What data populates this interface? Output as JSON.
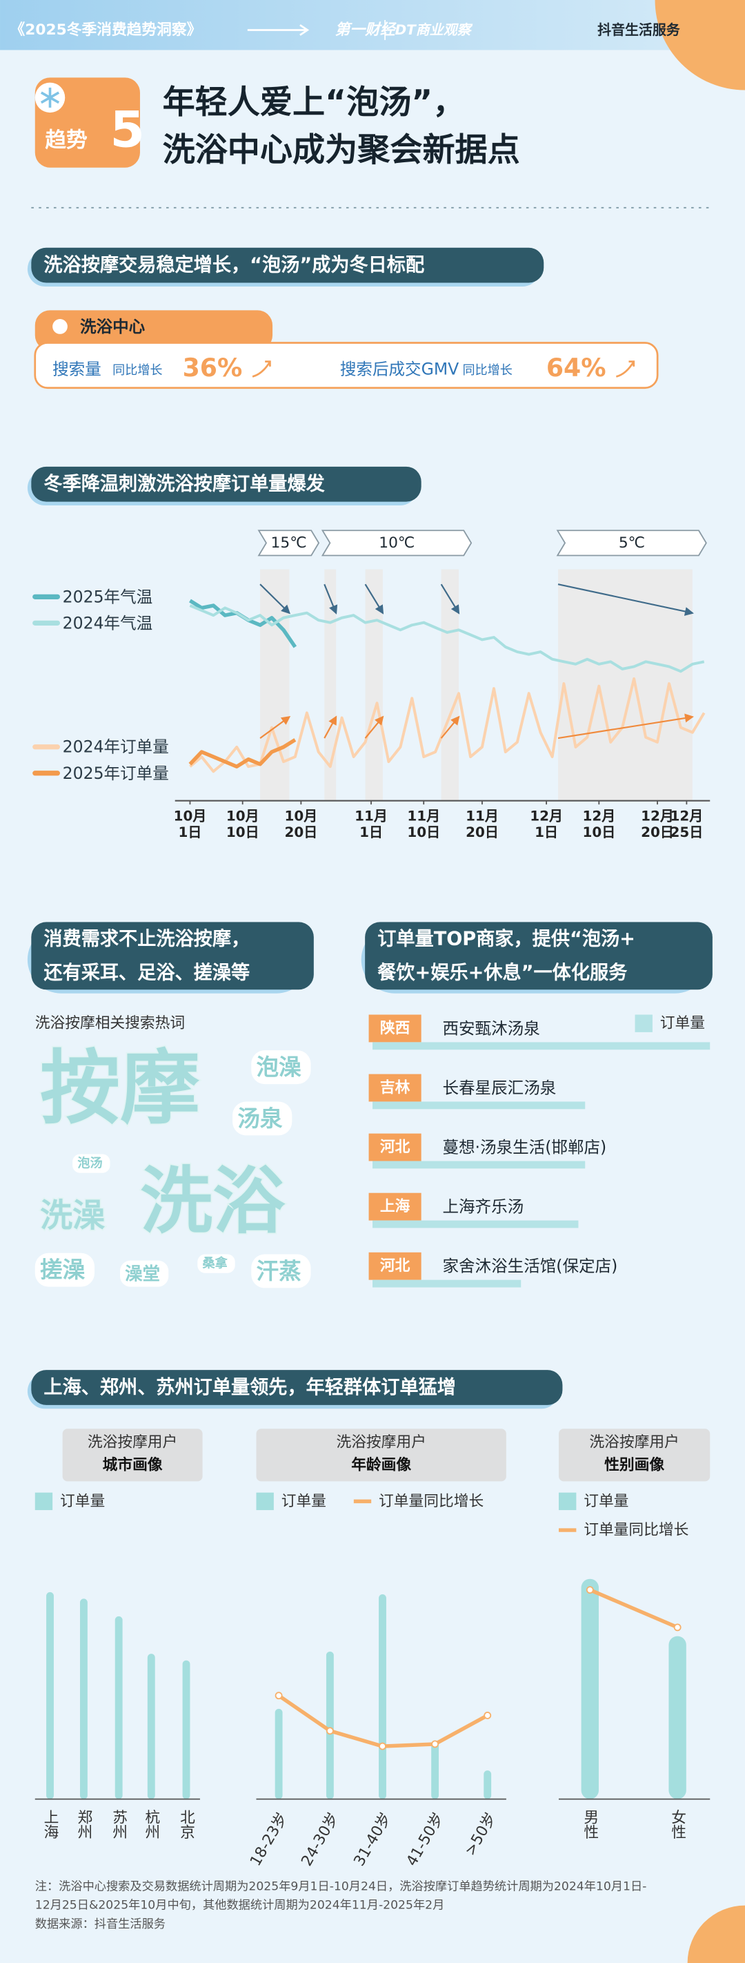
{
  "header": {
    "series_title": "《2025冬季消费趋势洞察》",
    "logos": [
      "第一财经",
      "DT商业观察",
      "抖音生活服务"
    ]
  },
  "trend": {
    "label": "趋势",
    "number": "5",
    "title": [
      "年轻人爱上“泡汤”，",
      "洗浴中心成为聚会新据点"
    ]
  },
  "section1": {
    "heading": "洗浴按摩交易稳定增长，“泡汤”成为冬日标配",
    "card": {
      "tab": "洗浴中心",
      "metrics": [
        {
          "name": "搜索量",
          "note": "同比增长",
          "value": "36%"
        },
        {
          "name": "搜索后成交GMV",
          "note": "同比增长",
          "value": "64%"
        }
      ]
    }
  },
  "section2": {
    "heading": "冬季降温刺激洗浴按摩订单量爆发",
    "temperature_bands": [
      "15℃",
      "10℃",
      "5℃"
    ]
  },
  "section3": {
    "left_heading": [
      "消费需求不止洗浴按摩，",
      "还有采耳、足浴、搓澡等"
    ],
    "cloud_title": "洗浴按摩相关搜索热词",
    "cloud_words": [
      "按摩",
      "洗浴",
      "泡澡",
      "汤泉",
      "泡汤",
      "洗澡",
      "搓澡",
      "澡堂",
      "桑拿",
      "汗蒸"
    ],
    "right_heading": [
      "订单量TOP商家，提供“泡汤+",
      "餐饮+娱乐+休息”一体化服务"
    ]
  },
  "section4": {
    "heading": "上海、郑州、苏州订单量领先，年轻群体订单猛增"
  },
  "footnote": [
    "注：洗浴中心搜索及交易数据统计周期为2025年9月1日-10月24日，洗浴按摩订单趋势统计周期为2024年10月1日-",
    "12月25日&2025年10月中旬，其他数据统计周期为2024年11月-2025年2月",
    "数据来源：抖音生活服务"
  ],
  "chart_data": [
    {
      "type": "line",
      "x": [
        0,
        2,
        4,
        6,
        8,
        10,
        12,
        14,
        16,
        18,
        20,
        22,
        24,
        26,
        28,
        30,
        32,
        34,
        36,
        38,
        40,
        42,
        44,
        46,
        48,
        50,
        52,
        54,
        56,
        58,
        60,
        62,
        64,
        66,
        68,
        70,
        72,
        74,
        76,
        78,
        80,
        82,
        84,
        86,
        88
      ],
      "xlim": [
        0,
        89
      ],
      "ylim": [
        0,
        100
      ],
      "xticks": [
        {
          "value": 0,
          "label": "10月1日"
        },
        {
          "value": 9,
          "label": "10月10日"
        },
        {
          "value": 19,
          "label": "10月20日"
        },
        {
          "value": 31,
          "label": "11月1日"
        },
        {
          "value": 40,
          "label": "11月10日"
        },
        {
          "value": 50,
          "label": "11月20日"
        },
        {
          "value": 61,
          "label": "12月1日"
        },
        {
          "value": 70,
          "label": "12月10日"
        },
        {
          "value": 80,
          "label": "12月20日"
        },
        {
          "value": 85,
          "label": "12月25日"
        }
      ],
      "highlight_ranges": [
        [
          12,
          17
        ],
        [
          23,
          25
        ],
        [
          30,
          33
        ],
        [
          43,
          46
        ],
        [
          63,
          86
        ]
      ],
      "series": [
        {
          "name": "2025年气温",
          "color": "#5bb8c2",
          "values": [
            82,
            79,
            80,
            76,
            77,
            74,
            72,
            75,
            70,
            63,
            null,
            null,
            null,
            null,
            null,
            null,
            null,
            null,
            null,
            null,
            null,
            null,
            null,
            null,
            null,
            null,
            null,
            null,
            null,
            null,
            null,
            null,
            null,
            null,
            null,
            null,
            null,
            null,
            null,
            null,
            null,
            null,
            null,
            null,
            null
          ]
        },
        {
          "name": "2024年气温",
          "color": "#a8dfe0",
          "values": [
            80,
            78,
            76,
            79,
            77,
            74,
            76,
            72,
            75,
            76,
            77,
            74,
            73,
            75,
            76,
            73,
            74,
            72,
            70,
            72,
            73,
            71,
            69,
            70,
            68,
            66,
            67,
            63,
            61,
            60,
            61,
            58,
            57,
            56,
            58,
            56,
            57,
            54,
            55,
            57,
            56,
            55,
            53,
            56,
            57
          ]
        },
        {
          "name": "2024年订单量",
          "color": "#fbd2ae",
          "values": [
            14,
            18,
            12,
            16,
            22,
            14,
            15,
            30,
            16,
            18,
            36,
            20,
            14,
            34,
            18,
            24,
            40,
            16,
            22,
            42,
            18,
            20,
            32,
            44,
            18,
            22,
            46,
            20,
            24,
            44,
            28,
            18,
            48,
            22,
            26,
            47,
            24,
            30,
            50,
            26,
            24,
            48,
            30,
            28,
            36
          ]
        },
        {
          "name": "2025年订单量",
          "color": "#f39a4c",
          "values": [
            15,
            20,
            18,
            16,
            14,
            17,
            15,
            20,
            22,
            25,
            null,
            null,
            null,
            null,
            null,
            null,
            null,
            null,
            null,
            null,
            null,
            null,
            null,
            null,
            null,
            null,
            null,
            null,
            null,
            null,
            null,
            null,
            null,
            null,
            null,
            null,
            null,
            null,
            null,
            null,
            null,
            null,
            null,
            null,
            null
          ]
        }
      ]
    },
    {
      "type": "hbar",
      "regions": [
        "陕西",
        "吉林",
        "河北",
        "上海",
        "河北"
      ],
      "categories": [
        "西安甄沐汤泉",
        "长春星辰汇汤泉",
        "蔓想·汤泉生活(邯郸店)",
        "上海齐乐汤",
        "家舍沐浴生活馆(保定店)"
      ],
      "xlim": [
        0,
        100
      ],
      "series": [
        {
          "name": "订单量",
          "color": "#b5e3e6",
          "values": [
            100,
            63,
            63,
            61,
            44
          ]
        }
      ]
    },
    {
      "type": "lollipop",
      "title": [
        "洗浴按摩用户",
        "城市画像"
      ],
      "categories": [
        "上海",
        "郑州",
        "苏州",
        "杭州",
        "北京"
      ],
      "ylim": [
        0,
        100
      ],
      "series": [
        {
          "name": "订单量",
          "color": "#a4dede",
          "values": [
            94,
            91,
            83,
            66,
            63
          ]
        }
      ]
    },
    {
      "type": "bar_line",
      "title": [
        "洗浴按摩用户",
        "年龄画像"
      ],
      "categories": [
        "18-23岁",
        "24-30岁",
        "31-40岁",
        "41-50岁",
        ">50岁"
      ],
      "ylim": [
        0,
        100
      ],
      "y2lim": [
        0,
        100
      ],
      "series": [
        {
          "name": "订单量",
          "color": "#a4dede",
          "values": [
            41,
            67,
            93,
            26,
            13
          ]
        },
        {
          "name": "订单量同比增长",
          "color": "#f7b06a",
          "axis": "y2",
          "values": [
            47,
            31,
            24,
            25,
            38
          ]
        }
      ]
    },
    {
      "type": "bar_line",
      "title": [
        "洗浴按摩用户",
        "性别画像"
      ],
      "categories": [
        "男性",
        "女性"
      ],
      "ylim": [
        0,
        100
      ],
      "y2lim": [
        0,
        100
      ],
      "series": [
        {
          "name": "订单量",
          "color": "#a4dede",
          "values": [
            100,
            74
          ]
        },
        {
          "name": "订单量同比增长",
          "color": "#f7b06a",
          "axis": "y2",
          "values": [
            95,
            78
          ]
        }
      ]
    }
  ]
}
